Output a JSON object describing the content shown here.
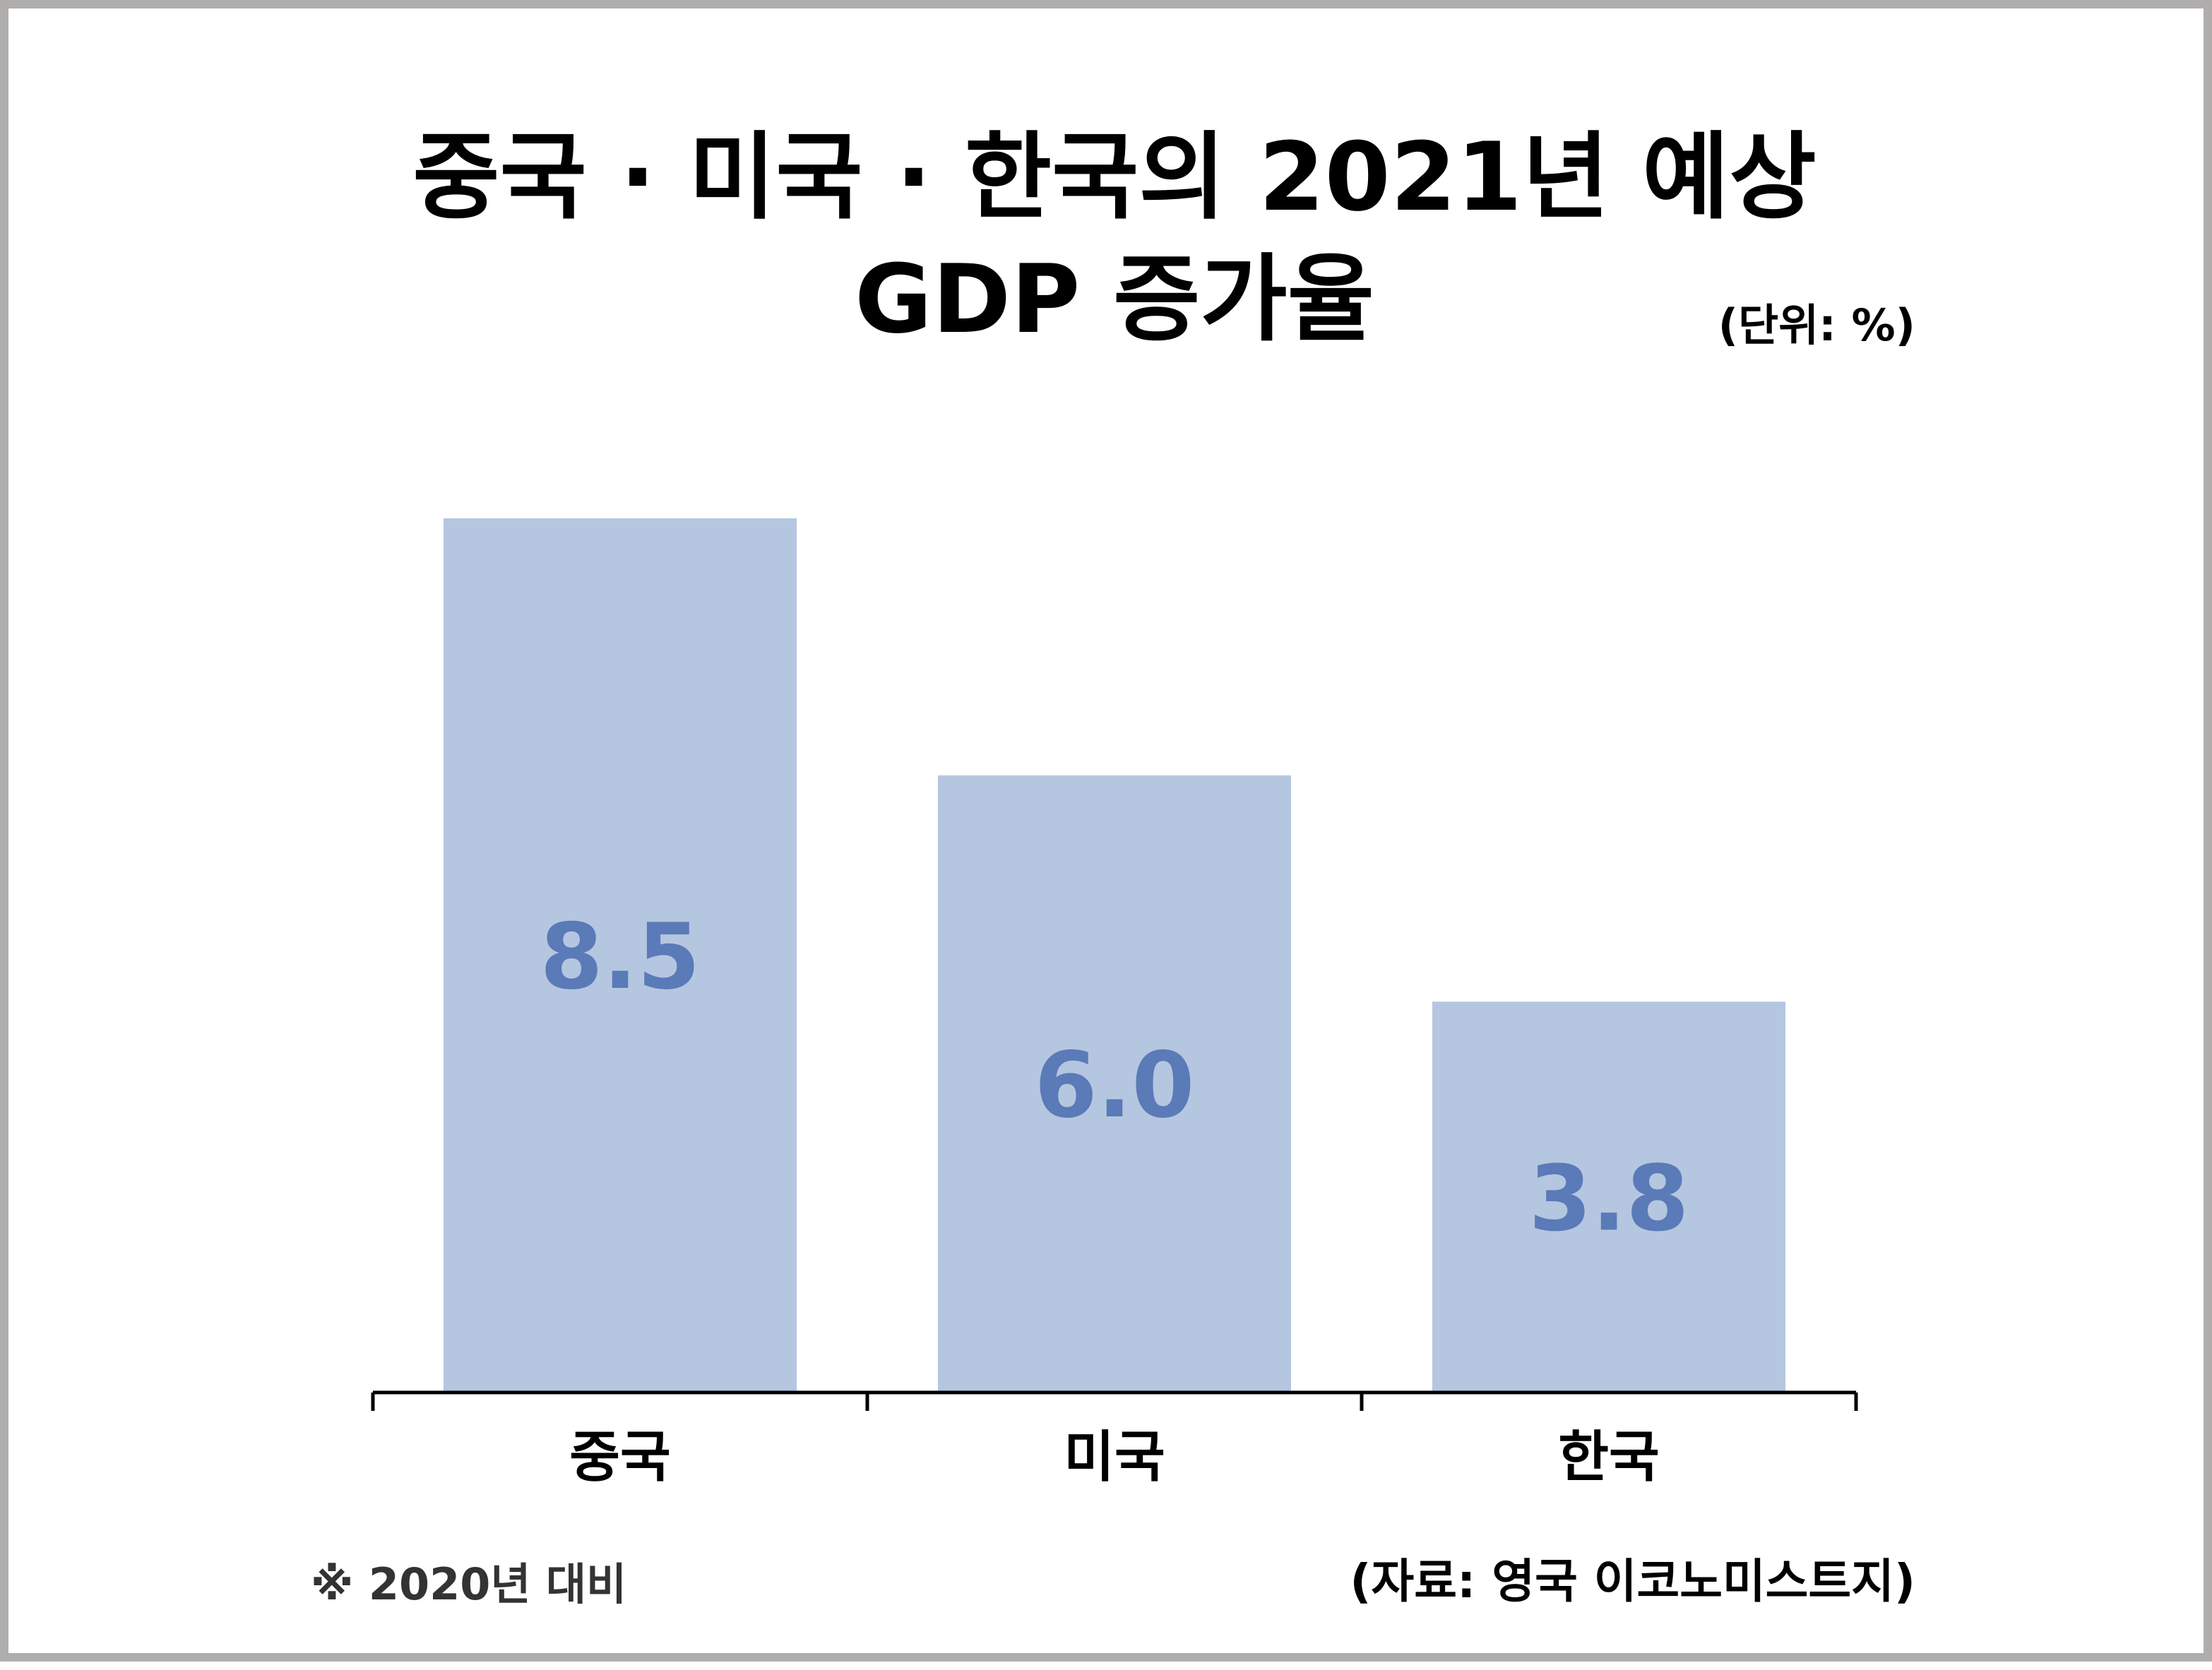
{
  "chart_data": {
    "type": "bar",
    "title_lines": [
      "중국 · 미국 · 한국의 2021년 예상",
      "GDP 증가율"
    ],
    "unit": "(단위: %)",
    "categories": [
      "중국",
      "미국",
      "한국"
    ],
    "values": [
      8.5,
      6.0,
      3.8
    ],
    "value_labels": [
      "8.5",
      "6.0",
      "3.8"
    ],
    "ylim": [
      0,
      8.5
    ],
    "grid": false,
    "legend": "none",
    "bar_color": "#b5c6e0",
    "label_color": "#5a7ab8",
    "footnote": "※ 2020년 대비",
    "source": "(자료: 영국 이코노미스트지)"
  }
}
